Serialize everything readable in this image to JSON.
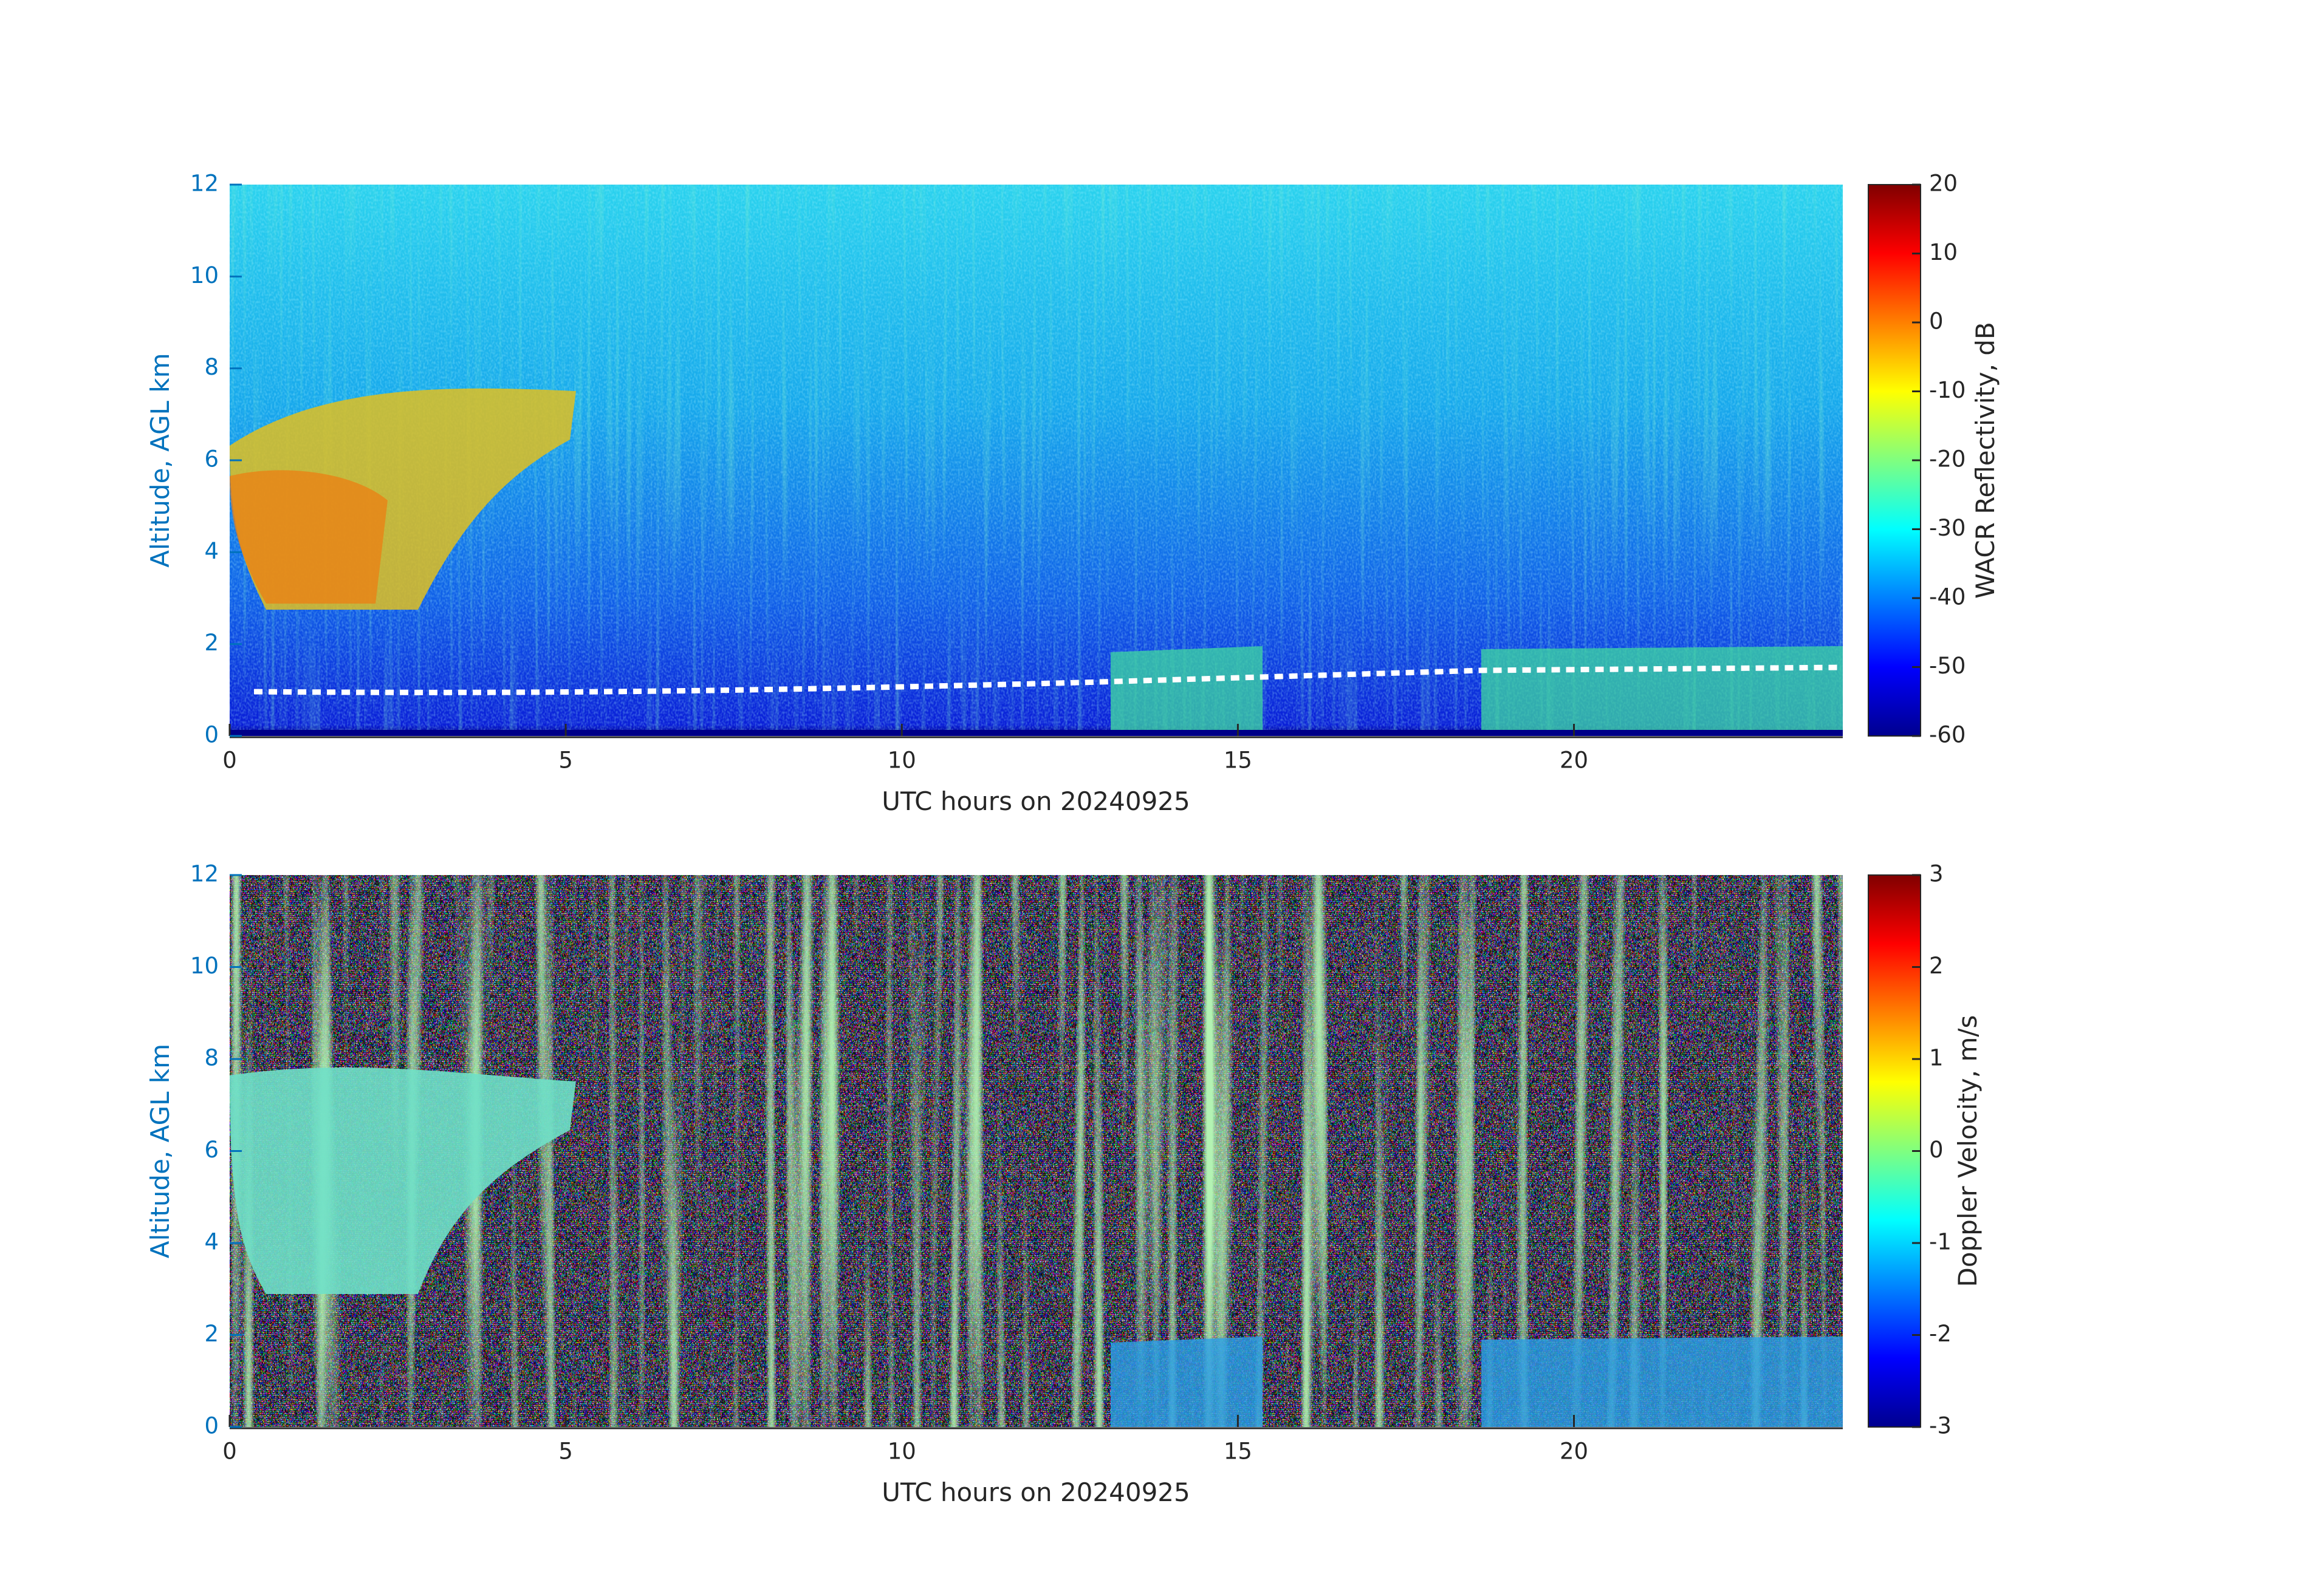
{
  "chart_data": [
    {
      "type": "heatmap",
      "xlabel": "UTC hours on 20240925",
      "ylabel": "Altitude, AGL km",
      "xlim": [
        0,
        24
      ],
      "xticks": [
        0,
        5,
        10,
        15,
        20
      ],
      "ylim": [
        0,
        12
      ],
      "yticks": [
        0,
        2,
        4,
        6,
        8,
        10,
        12
      ],
      "colorbar": {
        "label": "WACR Reflectivity, dB",
        "colormap": "jet",
        "lim": [
          -60,
          20
        ],
        "ticks": [
          -60,
          -50,
          -40,
          -30,
          -20,
          -10,
          0,
          10,
          20
        ]
      }
    },
    {
      "type": "heatmap",
      "xlabel": "UTC hours on 20240925",
      "ylabel": "Altitude, AGL km",
      "xlim": [
        0,
        24
      ],
      "xticks": [
        0,
        5,
        10,
        15,
        20
      ],
      "ylim": [
        0,
        12
      ],
      "yticks": [
        0,
        2,
        4,
        6,
        8,
        10,
        12
      ],
      "colorbar": {
        "label": "Doppler Velocity, m/s",
        "colormap": "jet",
        "lim": [
          -3,
          3
        ],
        "ticks": [
          -3,
          -2,
          -1,
          0,
          1,
          2,
          3
        ]
      }
    }
  ]
}
